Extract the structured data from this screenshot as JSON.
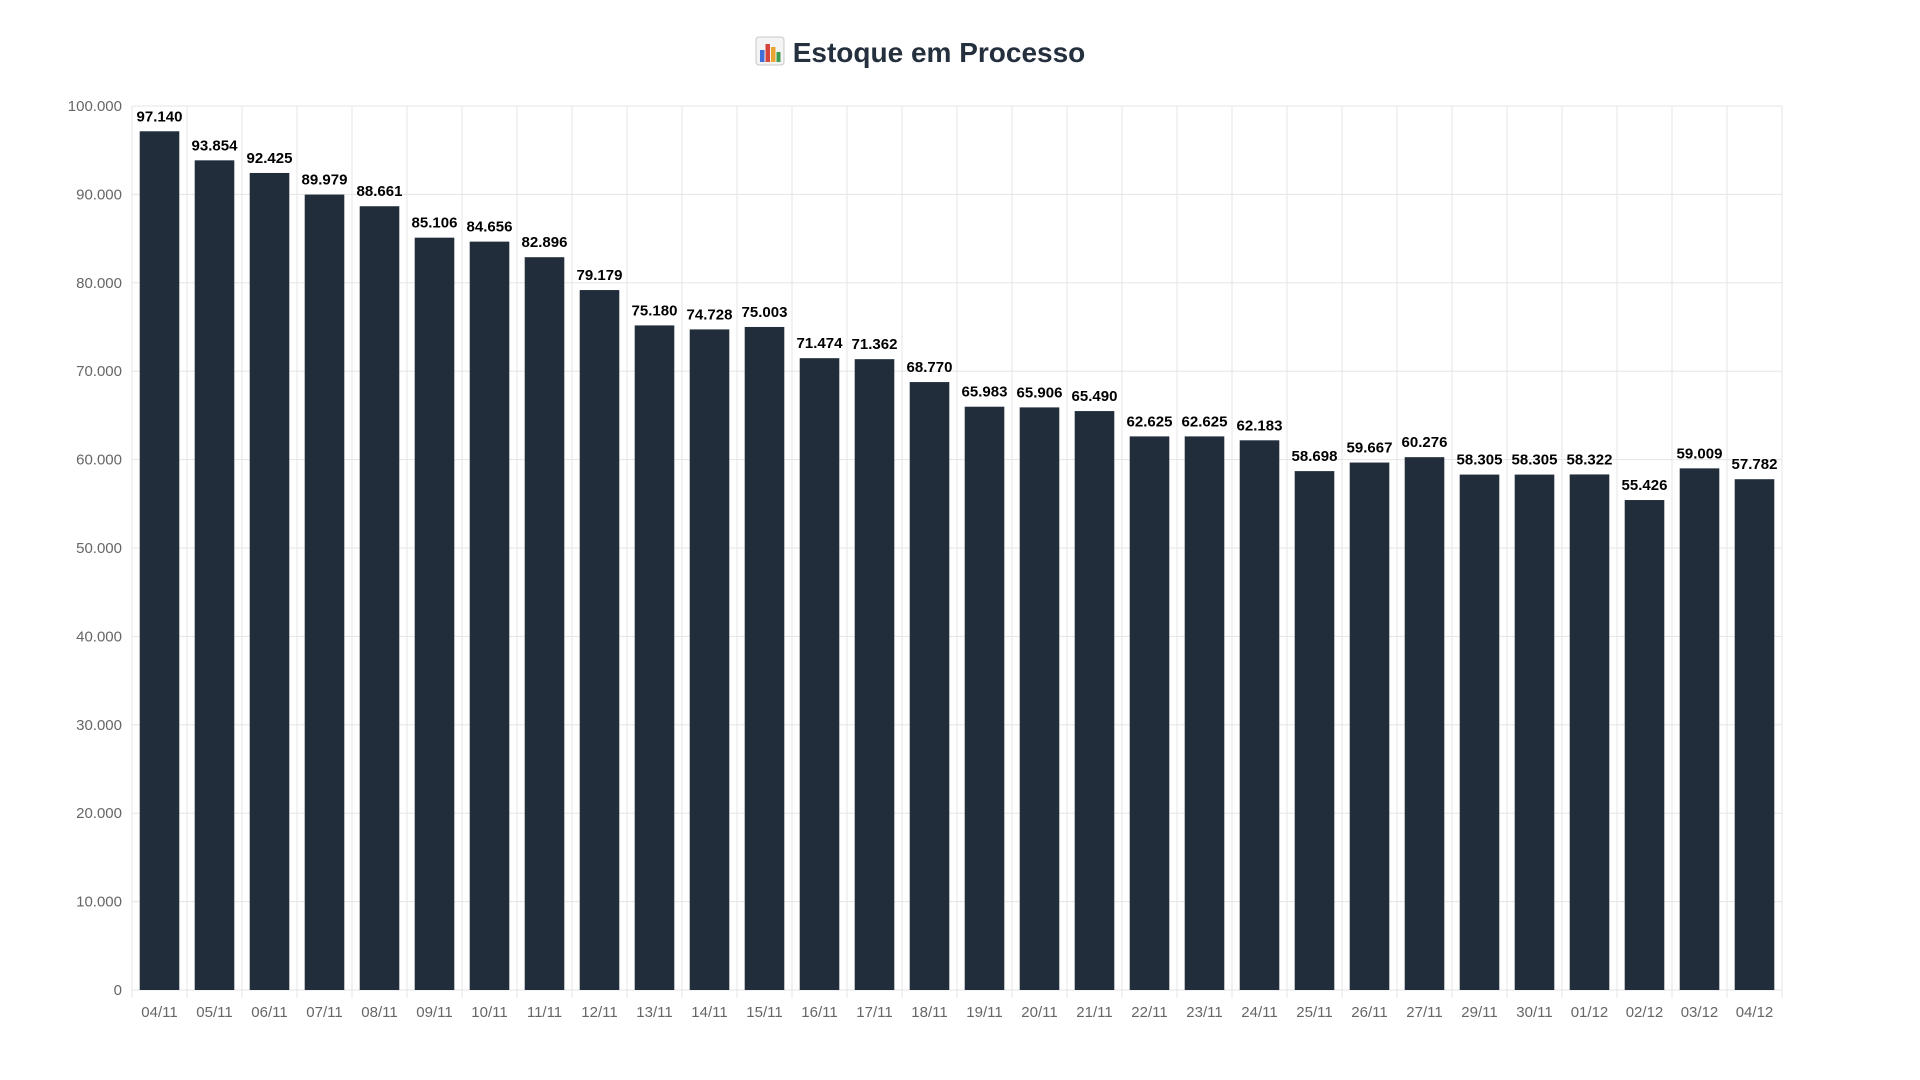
{
  "title": "Estoque em Processo",
  "title_icon": "bar-chart-icon",
  "colors": {
    "bar": "#222d3c",
    "title": "#25303e",
    "grid": "#e5e5e5",
    "axis_text": "#666666",
    "data_label": "#000000"
  },
  "chart_data": {
    "type": "bar",
    "title": "Estoque em Processo",
    "xlabel": "",
    "ylabel": "",
    "ylim": [
      0,
      100000
    ],
    "y_ticks": [
      0,
      10000,
      20000,
      30000,
      40000,
      50000,
      60000,
      70000,
      80000,
      90000,
      100000
    ],
    "y_tick_labels": [
      "0",
      "10.000",
      "20.000",
      "30.000",
      "40.000",
      "50.000",
      "60.000",
      "70.000",
      "80.000",
      "90.000",
      "100.000"
    ],
    "grid": true,
    "categories": [
      "04/11",
      "05/11",
      "06/11",
      "07/11",
      "08/11",
      "09/11",
      "10/11",
      "11/11",
      "12/11",
      "13/11",
      "14/11",
      "15/11",
      "16/11",
      "17/11",
      "18/11",
      "19/11",
      "20/11",
      "21/11",
      "22/11",
      "23/11",
      "24/11",
      "25/11",
      "26/11",
      "27/11",
      "29/11",
      "30/11",
      "01/12",
      "02/12",
      "03/12",
      "04/12"
    ],
    "values": [
      97140,
      93854,
      92425,
      89979,
      88661,
      85106,
      84656,
      82896,
      79179,
      75180,
      74728,
      75003,
      71474,
      71362,
      68770,
      65983,
      65906,
      65490,
      62625,
      62625,
      62183,
      58698,
      59667,
      60276,
      58305,
      58305,
      58322,
      55426,
      59009,
      57782
    ],
    "value_labels": [
      "97.140",
      "93.854",
      "92.425",
      "89.979",
      "88.661",
      "85.106",
      "84.656",
      "82.896",
      "79.179",
      "75.180",
      "74.728",
      "75.003",
      "71.474",
      "71.362",
      "68.770",
      "65.983",
      "65.906",
      "65.490",
      "62.625",
      "62.625",
      "62.183",
      "58.698",
      "59.667",
      "60.276",
      "58.305",
      "58.305",
      "58.322",
      "55.426",
      "59.009",
      "57.782"
    ]
  }
}
